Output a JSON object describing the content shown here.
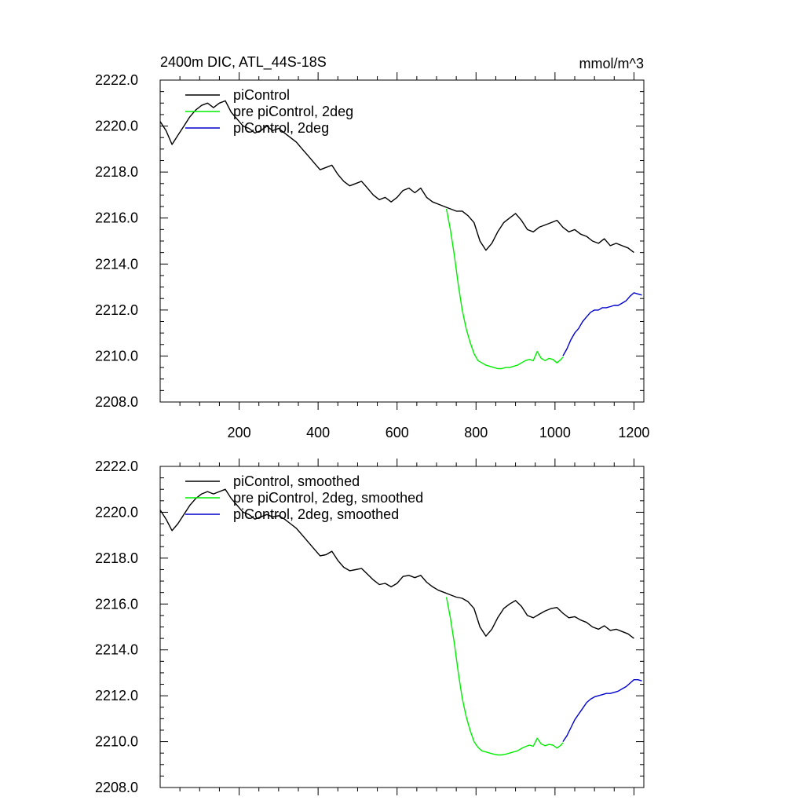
{
  "figure": {
    "title_left": "2400m DIC, ATL_44S-18S",
    "title_right": "mmol/m^3"
  },
  "chart_data": [
    {
      "type": "line",
      "title": "2400m DIC, ATL_44S-18S",
      "units": "mmol/m^3",
      "xlim": [
        0,
        1225
      ],
      "ylim": [
        2208.0,
        2222.0
      ],
      "x_ticks": [
        "200",
        "400",
        "600",
        "800",
        "1000",
        "1200"
      ],
      "y_ticks": [
        "2208.0",
        "2210.0",
        "2212.0",
        "2214.0",
        "2216.0",
        "2218.0",
        "2220.0",
        "2222.0"
      ],
      "legend_position": "top-left",
      "series": [
        {
          "name": "piControl",
          "color": "#000000",
          "x": [
            0,
            15,
            30,
            45,
            60,
            75,
            90,
            105,
            120,
            135,
            150,
            165,
            180,
            195,
            210,
            225,
            240,
            255,
            270,
            285,
            300,
            315,
            330,
            345,
            360,
            375,
            390,
            405,
            420,
            435,
            450,
            465,
            480,
            495,
            510,
            525,
            540,
            555,
            570,
            585,
            600,
            615,
            630,
            645,
            660,
            675,
            690,
            705,
            720,
            735,
            750,
            765,
            780,
            795,
            810,
            825,
            840,
            855,
            870,
            885,
            900,
            915,
            930,
            945,
            960,
            975,
            990,
            1005,
            1020,
            1035,
            1050,
            1065,
            1080,
            1095,
            1110,
            1125,
            1140,
            1155,
            1170,
            1185,
            1200
          ],
          "values": [
            2220.2,
            2219.8,
            2219.2,
            2219.6,
            2220.0,
            2220.4,
            2220.7,
            2220.9,
            2221.0,
            2220.8,
            2221.0,
            2221.1,
            2220.6,
            2220.3,
            2220.0,
            2219.9,
            2219.7,
            2219.8,
            2220.0,
            2219.8,
            2219.9,
            2219.7,
            2219.5,
            2219.3,
            2219.0,
            2218.7,
            2218.4,
            2218.1,
            2218.2,
            2218.3,
            2217.9,
            2217.6,
            2217.4,
            2217.5,
            2217.6,
            2217.3,
            2217.0,
            2216.8,
            2216.9,
            2216.7,
            2216.9,
            2217.2,
            2217.3,
            2217.1,
            2217.3,
            2216.9,
            2216.7,
            2216.6,
            2216.5,
            2216.4,
            2216.3,
            2216.3,
            2216.1,
            2215.8,
            2215.0,
            2214.6,
            2214.9,
            2215.4,
            2215.8,
            2216.0,
            2216.2,
            2215.9,
            2215.5,
            2215.4,
            2215.6,
            2215.7,
            2215.8,
            2215.9,
            2215.6,
            2215.4,
            2215.5,
            2215.3,
            2215.2,
            2215.0,
            2214.9,
            2215.1,
            2214.8,
            2214.9,
            2214.8,
            2214.7,
            2214.5
          ]
        },
        {
          "name": "pre piControl, 2deg",
          "color": "#00ee00",
          "x": [
            725,
            735,
            745,
            755,
            765,
            775,
            785,
            795,
            805,
            815,
            825,
            835,
            845,
            855,
            865,
            875,
            885,
            895,
            905,
            915,
            925,
            935,
            945,
            955,
            965,
            975,
            985,
            995,
            1005,
            1015,
            1020
          ],
          "values": [
            2216.4,
            2215.5,
            2214.4,
            2213.1,
            2212.0,
            2211.2,
            2210.6,
            2210.1,
            2209.8,
            2209.7,
            2209.6,
            2209.55,
            2209.5,
            2209.45,
            2209.45,
            2209.5,
            2209.5,
            2209.55,
            2209.6,
            2209.7,
            2209.8,
            2209.85,
            2209.8,
            2210.2,
            2209.9,
            2209.8,
            2209.9,
            2209.85,
            2209.7,
            2209.85,
            2209.95
          ]
        },
        {
          "name": "piControl, 2deg",
          "color": "#0000cc",
          "x": [
            1020,
            1030,
            1040,
            1050,
            1060,
            1070,
            1080,
            1090,
            1100,
            1110,
            1120,
            1130,
            1140,
            1150,
            1160,
            1170,
            1180,
            1190,
            1200,
            1210,
            1220
          ],
          "values": [
            2210.0,
            2210.3,
            2210.7,
            2211.0,
            2211.2,
            2211.5,
            2211.7,
            2211.9,
            2212.0,
            2212.0,
            2212.1,
            2212.1,
            2212.15,
            2212.2,
            2212.2,
            2212.3,
            2212.4,
            2212.6,
            2212.75,
            2212.7,
            2212.65
          ]
        }
      ]
    },
    {
      "type": "line",
      "title": "",
      "xlim": [
        0,
        1225
      ],
      "ylim": [
        2208.0,
        2222.0
      ],
      "y_ticks": [
        "2208.0",
        "2210.0",
        "2212.0",
        "2214.0",
        "2216.0",
        "2218.0",
        "2220.0",
        "2222.0"
      ],
      "legend_position": "top-left",
      "series": [
        {
          "name": "piControl, smoothed",
          "color": "#000000",
          "x": [
            0,
            15,
            30,
            45,
            60,
            75,
            90,
            105,
            120,
            135,
            150,
            165,
            180,
            195,
            210,
            225,
            240,
            255,
            270,
            285,
            300,
            315,
            330,
            345,
            360,
            375,
            390,
            405,
            420,
            435,
            450,
            465,
            480,
            495,
            510,
            525,
            540,
            555,
            570,
            585,
            600,
            615,
            630,
            645,
            660,
            675,
            690,
            705,
            720,
            735,
            750,
            765,
            780,
            795,
            810,
            825,
            840,
            855,
            870,
            885,
            900,
            915,
            930,
            945,
            960,
            975,
            990,
            1005,
            1020,
            1035,
            1050,
            1065,
            1080,
            1095,
            1110,
            1125,
            1140,
            1155,
            1170,
            1185,
            1200
          ],
          "values": [
            2220.1,
            2219.7,
            2219.2,
            2219.5,
            2219.9,
            2220.3,
            2220.6,
            2220.8,
            2220.9,
            2220.8,
            2220.9,
            2221.0,
            2220.6,
            2220.3,
            2220.0,
            2219.9,
            2219.7,
            2219.8,
            2219.9,
            2219.8,
            2219.85,
            2219.7,
            2219.5,
            2219.3,
            2219.0,
            2218.7,
            2218.4,
            2218.1,
            2218.15,
            2218.3,
            2217.9,
            2217.6,
            2217.45,
            2217.5,
            2217.55,
            2217.3,
            2217.05,
            2216.85,
            2216.9,
            2216.75,
            2216.9,
            2217.2,
            2217.25,
            2217.15,
            2217.25,
            2216.95,
            2216.75,
            2216.6,
            2216.5,
            2216.4,
            2216.3,
            2216.25,
            2216.1,
            2215.8,
            2215.0,
            2214.6,
            2214.9,
            2215.4,
            2215.8,
            2216.0,
            2216.15,
            2215.9,
            2215.5,
            2215.4,
            2215.55,
            2215.7,
            2215.8,
            2215.85,
            2215.6,
            2215.4,
            2215.45,
            2215.3,
            2215.2,
            2215.0,
            2214.9,
            2215.05,
            2214.85,
            2214.9,
            2214.8,
            2214.7,
            2214.5
          ]
        },
        {
          "name": "pre piControl, 2deg, smoothed",
          "color": "#00ee00",
          "x": [
            725,
            735,
            745,
            755,
            765,
            775,
            785,
            795,
            805,
            815,
            825,
            835,
            845,
            855,
            865,
            875,
            885,
            895,
            905,
            915,
            925,
            935,
            945,
            955,
            965,
            975,
            985,
            995,
            1005,
            1015,
            1020
          ],
          "values": [
            2216.3,
            2215.4,
            2214.3,
            2213.0,
            2211.9,
            2211.1,
            2210.5,
            2210.0,
            2209.75,
            2209.6,
            2209.55,
            2209.5,
            2209.45,
            2209.42,
            2209.42,
            2209.45,
            2209.5,
            2209.55,
            2209.6,
            2209.7,
            2209.78,
            2209.85,
            2209.8,
            2210.15,
            2209.9,
            2209.82,
            2209.88,
            2209.85,
            2209.72,
            2209.85,
            2209.95
          ]
        },
        {
          "name": "piControl, 2deg, smoothed",
          "color": "#0000cc",
          "x": [
            1020,
            1030,
            1040,
            1050,
            1060,
            1070,
            1080,
            1090,
            1100,
            1110,
            1120,
            1130,
            1140,
            1150,
            1160,
            1170,
            1180,
            1190,
            1200,
            1210,
            1220
          ],
          "values": [
            2210.0,
            2210.25,
            2210.6,
            2210.95,
            2211.2,
            2211.45,
            2211.7,
            2211.85,
            2211.95,
            2212.0,
            2212.05,
            2212.1,
            2212.1,
            2212.15,
            2212.2,
            2212.3,
            2212.4,
            2212.55,
            2212.7,
            2212.7,
            2212.65
          ]
        }
      ]
    }
  ]
}
